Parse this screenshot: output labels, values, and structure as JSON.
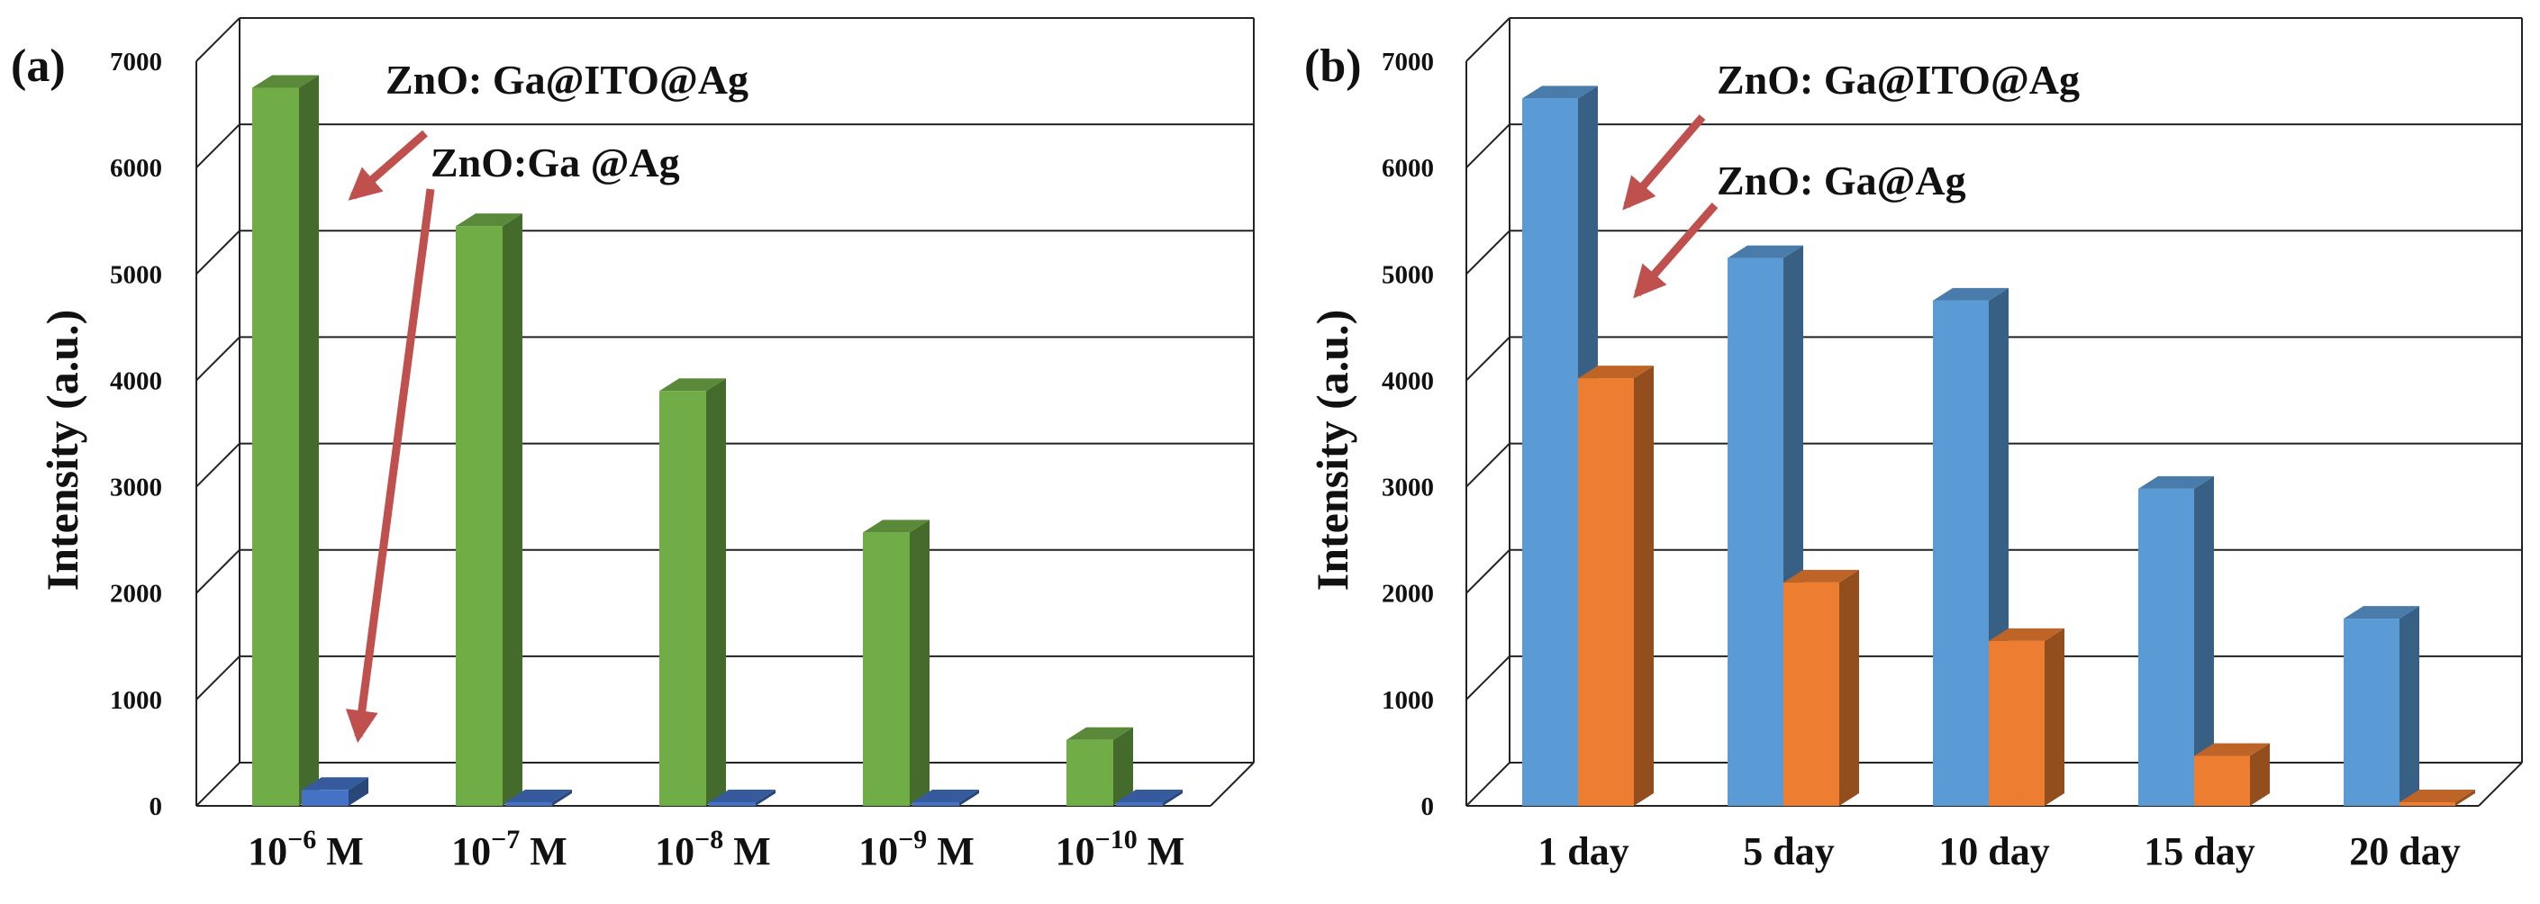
{
  "chart_data": [
    {
      "type": "bar",
      "panel_label": "(a)",
      "ylabel": "Intensity (a.u.)",
      "xlabel": "",
      "ylim": [
        0,
        7000
      ],
      "yticks": [
        0,
        1000,
        2000,
        3000,
        4000,
        5000,
        6000,
        7000
      ],
      "grid": true,
      "categories": [
        {
          "base": "10",
          "exp": "−6",
          "unit": " M"
        },
        {
          "base": "10",
          "exp": "−7",
          "unit": " M"
        },
        {
          "base": "10",
          "exp": "−8",
          "unit": " M"
        },
        {
          "base": "10",
          "exp": "−9",
          "unit": " M"
        },
        {
          "base": "10",
          "exp": "−10",
          "unit": " M"
        }
      ],
      "series": [
        {
          "name": "ZnO: Ga@ITO@Ag",
          "color": "#70ad47",
          "values": [
            6750,
            5450,
            3900,
            2570,
            620
          ]
        },
        {
          "name": "ZnO:Ga @Ag",
          "color": "#4472c4",
          "values": [
            150,
            0,
            0,
            0,
            0
          ]
        }
      ],
      "annotations": [
        "ZnO: Ga@ITO@Ag",
        "ZnO:Ga @Ag"
      ],
      "arrow_color": "#c0504d"
    },
    {
      "type": "bar",
      "panel_label": "(b)",
      "ylabel": "Intensity (a.u.)",
      "xlabel": "",
      "ylim": [
        0,
        7000
      ],
      "yticks": [
        0,
        1000,
        2000,
        3000,
        4000,
        5000,
        6000,
        7000
      ],
      "grid": true,
      "categories": [
        {
          "base": "1 day"
        },
        {
          "base": "5 day"
        },
        {
          "base": "10 day"
        },
        {
          "base": "15 day"
        },
        {
          "base": "20 day"
        }
      ],
      "series": [
        {
          "name": "ZnO: Ga@ITO@Ag",
          "color": "#5b9bd5",
          "values": [
            6650,
            5150,
            4750,
            2980,
            1760
          ]
        },
        {
          "name": "ZnO: Ga@Ag",
          "color": "#ed7d31",
          "values": [
            4020,
            2100,
            1550,
            470,
            0
          ]
        }
      ],
      "annotations": [
        "ZnO: Ga@ITO@Ag",
        "ZnO: Ga@Ag"
      ],
      "arrow_color": "#c0504d"
    }
  ]
}
